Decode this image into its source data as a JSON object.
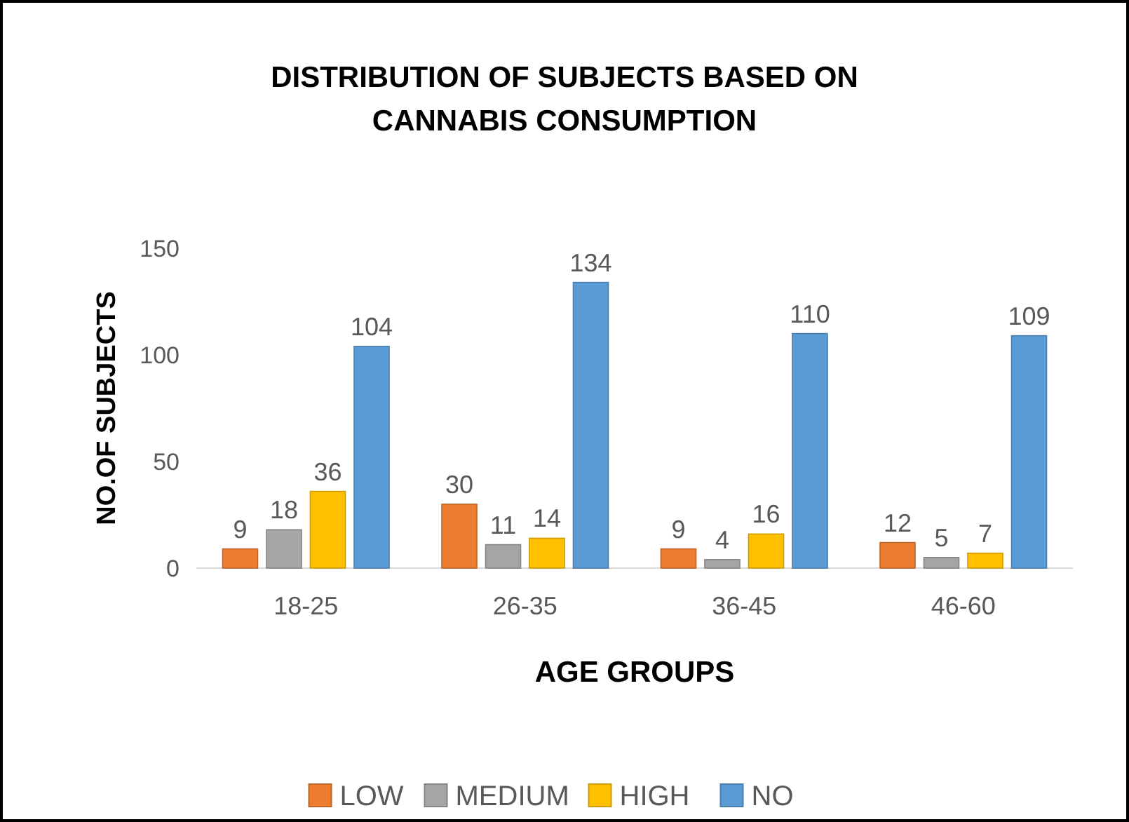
{
  "chart_data": {
    "type": "bar",
    "title": "DISTRIBUTION OF SUBJECTS BASED ON CANNABIS CONSUMPTION",
    "xlabel": "AGE GROUPS",
    "ylabel": "NO.OF SUBJECTS",
    "categories": [
      "18-25",
      "26-35",
      "36-45",
      "46-60"
    ],
    "series": [
      {
        "name": "LOW",
        "color": "#ed7d31",
        "values": [
          9,
          30,
          9,
          12
        ]
      },
      {
        "name": "MEDIUM",
        "color": "#a5a5a5",
        "values": [
          18,
          11,
          4,
          5
        ]
      },
      {
        "name": "HIGH",
        "color": "#ffc000",
        "values": [
          36,
          14,
          16,
          7
        ]
      },
      {
        "name": "NO",
        "color": "#5b9bd5",
        "values": [
          104,
          134,
          110,
          109
        ]
      }
    ],
    "ylim": [
      0,
      150
    ],
    "yticks": [
      0,
      50,
      100,
      150
    ],
    "grid": false,
    "legend": "bottom",
    "data_labels": true
  }
}
